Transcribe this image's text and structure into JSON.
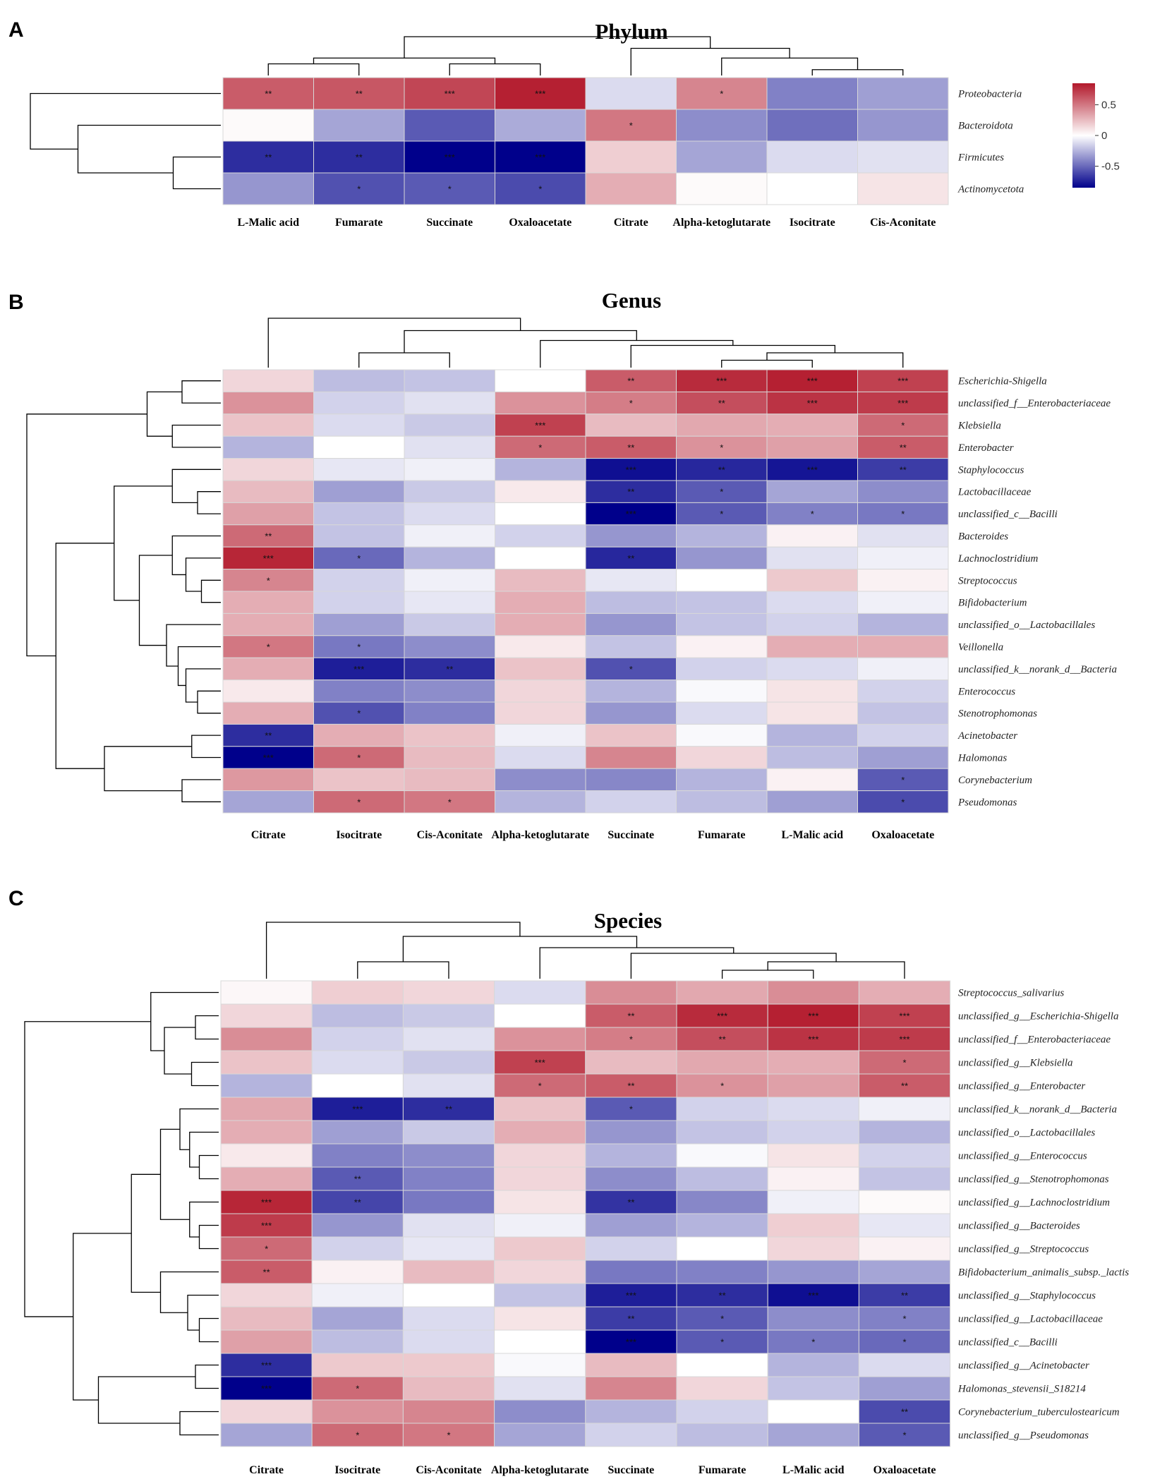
{
  "colors": {
    "low": "#00008b",
    "mid": "#ffffff",
    "high": "#b2182b",
    "cell_border": "#d8d8d8"
  },
  "legend": {
    "ticks": [
      0.5,
      0,
      -0.5
    ],
    "tick_labels": [
      "0.5",
      "0",
      "-0.5"
    ],
    "range": [
      -0.85,
      0.85
    ]
  },
  "chart_data": [
    {
      "type": "heatmap",
      "panel": "A",
      "title": "Phylum",
      "columns": [
        "L-Malic acid",
        "Fumarate",
        "Succinate",
        "Oxaloacetate",
        "Citrate",
        "Alpha-ketoglutarate",
        "Isocitrate",
        "Cis-Aconitate"
      ],
      "rows": [
        "Proteobacteria",
        "Bacteroidota",
        "Firmicutes",
        "Actinomycetota"
      ],
      "values": [
        [
          0.6,
          0.62,
          0.68,
          0.82,
          -0.12,
          0.45,
          -0.42,
          -0.32
        ],
        [
          0.02,
          -0.3,
          -0.55,
          -0.28,
          0.5,
          -0.38,
          -0.48,
          -0.35
        ],
        [
          -0.7,
          -0.7,
          -0.88,
          -0.88,
          0.18,
          -0.3,
          -0.12,
          -0.1
        ],
        [
          -0.35,
          -0.58,
          -0.55,
          -0.6,
          0.3,
          0.02,
          0.0,
          0.1
        ]
      ],
      "sig": [
        [
          "**",
          "**",
          "***",
          "***",
          "",
          "*",
          "",
          ""
        ],
        [
          "",
          "",
          "",
          "",
          "*",
          "",
          "",
          ""
        ],
        [
          "**",
          "**",
          "***",
          "***",
          "",
          "",
          "",
          ""
        ],
        [
          "",
          "*",
          "*",
          "*",
          "",
          "",
          "",
          ""
        ]
      ],
      "row_order_tree": "(Proteobacteria,(Bacteroidota,(Firmicutes,Actinomycetota)))",
      "col_order_tree": "((L-Malic acid,Fumarate),(Succinate,Oxaloacetate)),(Citrate,(Alpha-ketoglutarate,(Isocitrate,Cis-Aconitate)))"
    },
    {
      "type": "heatmap",
      "panel": "B",
      "title": "Genus",
      "columns": [
        "Citrate",
        "Isocitrate",
        "Cis-Aconitate",
        "Alpha-ketoglutarate",
        "Succinate",
        "Fumarate",
        "L-Malic acid",
        "Oxaloacetate"
      ],
      "rows": [
        "Escherichia-Shigella",
        "unclassified_f__Enterobacteriaceae",
        "Klebsiella",
        "Enterobacter",
        "Staphylococcus",
        "Lactobacillaceae",
        "unclassified_c__Bacilli",
        "Bacteroides",
        "Lachnoclostridium",
        "Streptococcus",
        "Bifidobacterium",
        "unclassified_o__Lactobacillales",
        "Veillonella",
        "unclassified_k__norank_d__Bacteria",
        "Enterococcus",
        "Stenotrophomonas",
        "Acinetobacter",
        "Halomonas",
        "Corynebacterium",
        "Pseudomonas"
      ],
      "values": [
        [
          0.15,
          -0.22,
          -0.2,
          0.0,
          0.6,
          0.78,
          0.82,
          0.7
        ],
        [
          0.4,
          -0.15,
          -0.1,
          0.4,
          0.48,
          0.65,
          0.75,
          0.72
        ],
        [
          0.22,
          -0.12,
          -0.18,
          0.7,
          0.25,
          0.32,
          0.3,
          0.55
        ],
        [
          -0.25,
          0.0,
          -0.1,
          0.55,
          0.6,
          0.4,
          0.35,
          0.6
        ],
        [
          0.15,
          -0.08,
          -0.05,
          -0.25,
          -0.8,
          -0.72,
          -0.78,
          -0.65
        ],
        [
          0.25,
          -0.32,
          -0.18,
          0.08,
          -0.7,
          -0.55,
          -0.3,
          -0.38
        ],
        [
          0.35,
          -0.2,
          -0.12,
          0.0,
          -0.85,
          -0.55,
          -0.42,
          -0.45
        ],
        [
          0.55,
          -0.2,
          -0.05,
          -0.15,
          -0.35,
          -0.25,
          0.05,
          -0.1
        ],
        [
          0.8,
          -0.5,
          -0.25,
          0.0,
          -0.72,
          -0.35,
          -0.1,
          -0.05
        ],
        [
          0.45,
          -0.15,
          -0.05,
          0.25,
          -0.08,
          0.0,
          0.2,
          0.05
        ],
        [
          0.3,
          -0.15,
          -0.08,
          0.3,
          -0.22,
          -0.2,
          -0.12,
          -0.05
        ],
        [
          0.3,
          -0.32,
          -0.18,
          0.3,
          -0.35,
          -0.2,
          -0.15,
          -0.25
        ],
        [
          0.5,
          -0.45,
          -0.38,
          0.08,
          -0.2,
          0.05,
          0.3,
          0.3
        ],
        [
          0.3,
          -0.75,
          -0.7,
          0.22,
          -0.58,
          -0.15,
          -0.12,
          -0.05
        ],
        [
          0.08,
          -0.42,
          -0.38,
          0.15,
          -0.25,
          -0.02,
          0.1,
          -0.15
        ],
        [
          0.3,
          -0.58,
          -0.42,
          0.15,
          -0.35,
          -0.12,
          0.1,
          -0.2
        ],
        [
          -0.7,
          0.3,
          0.22,
          -0.05,
          0.22,
          -0.02,
          -0.25,
          -0.15
        ],
        [
          -0.9,
          0.55,
          0.25,
          -0.12,
          0.45,
          0.15,
          -0.22,
          -0.32
        ],
        [
          0.38,
          0.22,
          0.25,
          -0.38,
          -0.4,
          -0.25,
          0.05,
          -0.55
        ],
        [
          -0.3,
          0.55,
          0.5,
          -0.25,
          -0.15,
          -0.22,
          -0.32,
          -0.6
        ]
      ],
      "sig": [
        [
          "",
          "",
          "",
          "",
          "**",
          "***",
          "***",
          "***"
        ],
        [
          "",
          "",
          "",
          "",
          "*",
          "**",
          "***",
          "***"
        ],
        [
          "",
          "",
          "",
          "***",
          "",
          "",
          "",
          "*"
        ],
        [
          "",
          "",
          "",
          "*",
          "**",
          "*",
          "",
          "**"
        ],
        [
          "",
          "",
          "",
          "",
          "***",
          "**",
          "***",
          "**"
        ],
        [
          "",
          "",
          "",
          "",
          "**",
          "*",
          "",
          ""
        ],
        [
          "",
          "",
          "",
          "",
          "***",
          "*",
          "*",
          "*"
        ],
        [
          "**",
          "",
          "",
          "",
          "",
          "",
          "",
          ""
        ],
        [
          "***",
          "*",
          "",
          "",
          "**",
          "",
          "",
          ""
        ],
        [
          "*",
          "",
          "",
          "",
          "",
          "",
          "",
          ""
        ],
        [
          "",
          "",
          "",
          "",
          "",
          "",
          "",
          ""
        ],
        [
          "",
          "",
          "",
          "",
          "",
          "",
          "",
          ""
        ],
        [
          "*",
          "*",
          "",
          "",
          "",
          "",
          "",
          ""
        ],
        [
          "",
          "***",
          "**",
          "",
          "*",
          "",
          "",
          ""
        ],
        [
          "",
          "",
          "",
          "",
          "",
          "",
          "",
          ""
        ],
        [
          "",
          "*",
          "",
          "",
          "",
          "",
          "",
          ""
        ],
        [
          "**",
          "",
          "",
          "",
          "",
          "",
          "",
          ""
        ],
        [
          "***",
          "*",
          "",
          "",
          "",
          "",
          "",
          ""
        ],
        [
          "",
          "",
          "",
          "",
          "",
          "",
          "",
          "*"
        ],
        [
          "",
          "*",
          "*",
          "",
          "",
          "",
          "",
          "*"
        ]
      ]
    },
    {
      "type": "heatmap",
      "panel": "C",
      "title": "Species",
      "columns": [
        "Citrate",
        "Isocitrate",
        "Cis-Aconitate",
        "Alpha-ketoglutarate",
        "Succinate",
        "Fumarate",
        "L-Malic acid",
        "Oxaloacetate"
      ],
      "rows": [
        "Streptococcus_salivarius",
        "unclassified_g__Escherichia-Shigella",
        "unclassified_f__Enterobacteriaceae",
        "unclassified_g__Klebsiella",
        "unclassified_g__Enterobacter",
        "unclassified_k__norank_d__Bacteria",
        "unclassified_o__Lactobacillales",
        "unclassified_g__Enterococcus",
        "unclassified_g__Stenotrophomonas",
        "unclassified_g__Lachnoclostridium",
        "unclassified_g__Bacteroides",
        "unclassified_g__Streptococcus",
        "Bifidobacterium_animalis_subsp._lactis",
        "unclassified_g__Staphylococcus",
        "unclassified_g__Lactobacillaceae",
        "unclassified_c__Bacilli",
        "unclassified_g__Acinetobacter",
        "Halomonas_stevensii_S18214",
        "Corynebacterium_tuberculostearicum",
        "unclassified_g__Pseudomonas"
      ],
      "values": [
        [
          0.03,
          0.18,
          0.15,
          -0.12,
          0.42,
          0.32,
          0.42,
          0.3
        ],
        [
          0.15,
          -0.22,
          -0.18,
          0.0,
          0.6,
          0.78,
          0.82,
          0.7
        ],
        [
          0.42,
          -0.15,
          -0.1,
          0.4,
          0.48,
          0.65,
          0.75,
          0.72
        ],
        [
          0.22,
          -0.12,
          -0.18,
          0.7,
          0.25,
          0.32,
          0.3,
          0.55
        ],
        [
          -0.25,
          0.0,
          -0.1,
          0.55,
          0.6,
          0.4,
          0.35,
          0.6
        ],
        [
          0.32,
          -0.75,
          -0.7,
          0.22,
          -0.55,
          -0.15,
          -0.12,
          -0.05
        ],
        [
          0.3,
          -0.32,
          -0.18,
          0.3,
          -0.35,
          -0.2,
          -0.15,
          -0.25
        ],
        [
          0.08,
          -0.42,
          -0.38,
          0.15,
          -0.25,
          -0.02,
          0.1,
          -0.15
        ],
        [
          0.3,
          -0.55,
          -0.42,
          0.15,
          -0.38,
          -0.22,
          0.05,
          -0.2
        ],
        [
          0.8,
          -0.62,
          -0.45,
          0.1,
          -0.68,
          -0.4,
          -0.05,
          0.02
        ],
        [
          0.72,
          -0.35,
          -0.1,
          -0.05,
          -0.32,
          -0.25,
          0.18,
          -0.08
        ],
        [
          0.55,
          -0.15,
          -0.08,
          0.2,
          -0.15,
          0.0,
          0.15,
          0.05
        ],
        [
          0.6,
          0.05,
          0.25,
          0.15,
          -0.45,
          -0.42,
          -0.35,
          -0.3
        ],
        [
          0.15,
          -0.05,
          0.0,
          -0.2,
          -0.75,
          -0.7,
          -0.8,
          -0.65
        ],
        [
          0.25,
          -0.3,
          -0.12,
          0.1,
          -0.65,
          -0.55,
          -0.38,
          -0.42
        ],
        [
          0.35,
          -0.22,
          -0.12,
          0.0,
          -0.85,
          -0.55,
          -0.45,
          -0.5
        ],
        [
          -0.7,
          0.2,
          0.2,
          -0.02,
          0.25,
          0.0,
          -0.25,
          -0.12
        ],
        [
          -0.9,
          0.55,
          0.25,
          -0.1,
          0.45,
          0.15,
          -0.2,
          -0.32
        ],
        [
          0.15,
          0.4,
          0.45,
          -0.38,
          -0.25,
          -0.15,
          0.0,
          -0.6
        ],
        [
          -0.3,
          0.55,
          0.5,
          -0.3,
          -0.15,
          -0.22,
          -0.3,
          -0.55
        ]
      ],
      "sig": [
        [
          "",
          "",
          "",
          "",
          "",
          "",
          "",
          ""
        ],
        [
          "",
          "",
          "",
          "",
          "**",
          "***",
          "***",
          "***"
        ],
        [
          "",
          "",
          "",
          "",
          "*",
          "**",
          "***",
          "***"
        ],
        [
          "",
          "",
          "",
          "***",
          "",
          "",
          "",
          "*"
        ],
        [
          "",
          "",
          "",
          "*",
          "**",
          "*",
          "",
          "**"
        ],
        [
          "",
          "***",
          "**",
          "",
          "*",
          "",
          "",
          ""
        ],
        [
          "",
          "",
          "",
          "",
          "",
          "",
          "",
          ""
        ],
        [
          "",
          "",
          "",
          "",
          "",
          "",
          "",
          ""
        ],
        [
          "",
          "**",
          "",
          "",
          "",
          "",
          "",
          ""
        ],
        [
          "***",
          "**",
          "",
          "",
          "**",
          "",
          "",
          ""
        ],
        [
          "***",
          "",
          "",
          "",
          "",
          "",
          "",
          ""
        ],
        [
          "*",
          "",
          "",
          "",
          "",
          "",
          "",
          ""
        ],
        [
          "**",
          "",
          "",
          "",
          "",
          "",
          "",
          ""
        ],
        [
          "",
          "",
          "",
          "",
          "***",
          "**",
          "***",
          "**"
        ],
        [
          "",
          "",
          "",
          "",
          "**",
          "*",
          "",
          "*"
        ],
        [
          "",
          "",
          "",
          "",
          "***",
          "*",
          "*",
          "*"
        ],
        [
          "***",
          "",
          "",
          "",
          "",
          "",
          "",
          ""
        ],
        [
          "***",
          "*",
          "",
          "",
          "",
          "",
          "",
          ""
        ],
        [
          "",
          "",
          "",
          "",
          "",
          "",
          "",
          "**"
        ],
        [
          "",
          "*",
          "*",
          "",
          "",
          "",
          "",
          "*"
        ]
      ]
    }
  ]
}
